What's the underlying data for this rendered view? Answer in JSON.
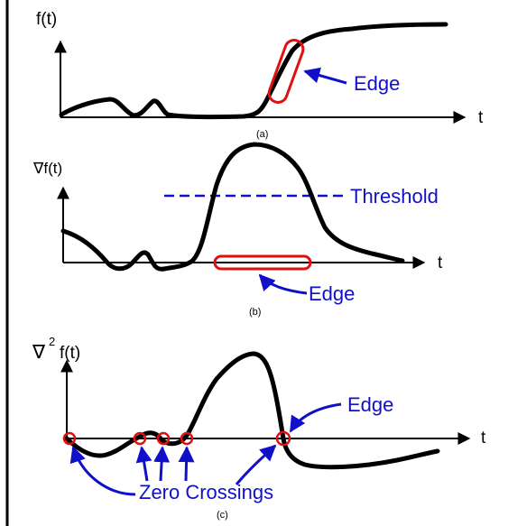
{
  "colors": {
    "curve": "#000000",
    "annotation": "#1010c8",
    "edge_marker": "#e01010",
    "background": "#ffffff"
  },
  "panel_a": {
    "y_label": "f(t)",
    "x_label": "t",
    "caption": "(a)",
    "edge_label": "Edge"
  },
  "panel_b": {
    "y_label": "∇f(t)",
    "x_label": "t",
    "caption": "(b)",
    "edge_label": "Edge",
    "threshold_label": "Threshold"
  },
  "panel_c": {
    "y_label_nabla": "∇",
    "y_label_power": "2",
    "y_label_func": "f(t)",
    "x_label": "t",
    "caption": "(c)",
    "edge_label": "Edge",
    "zero_crossings_label": "Zero Crossings"
  }
}
